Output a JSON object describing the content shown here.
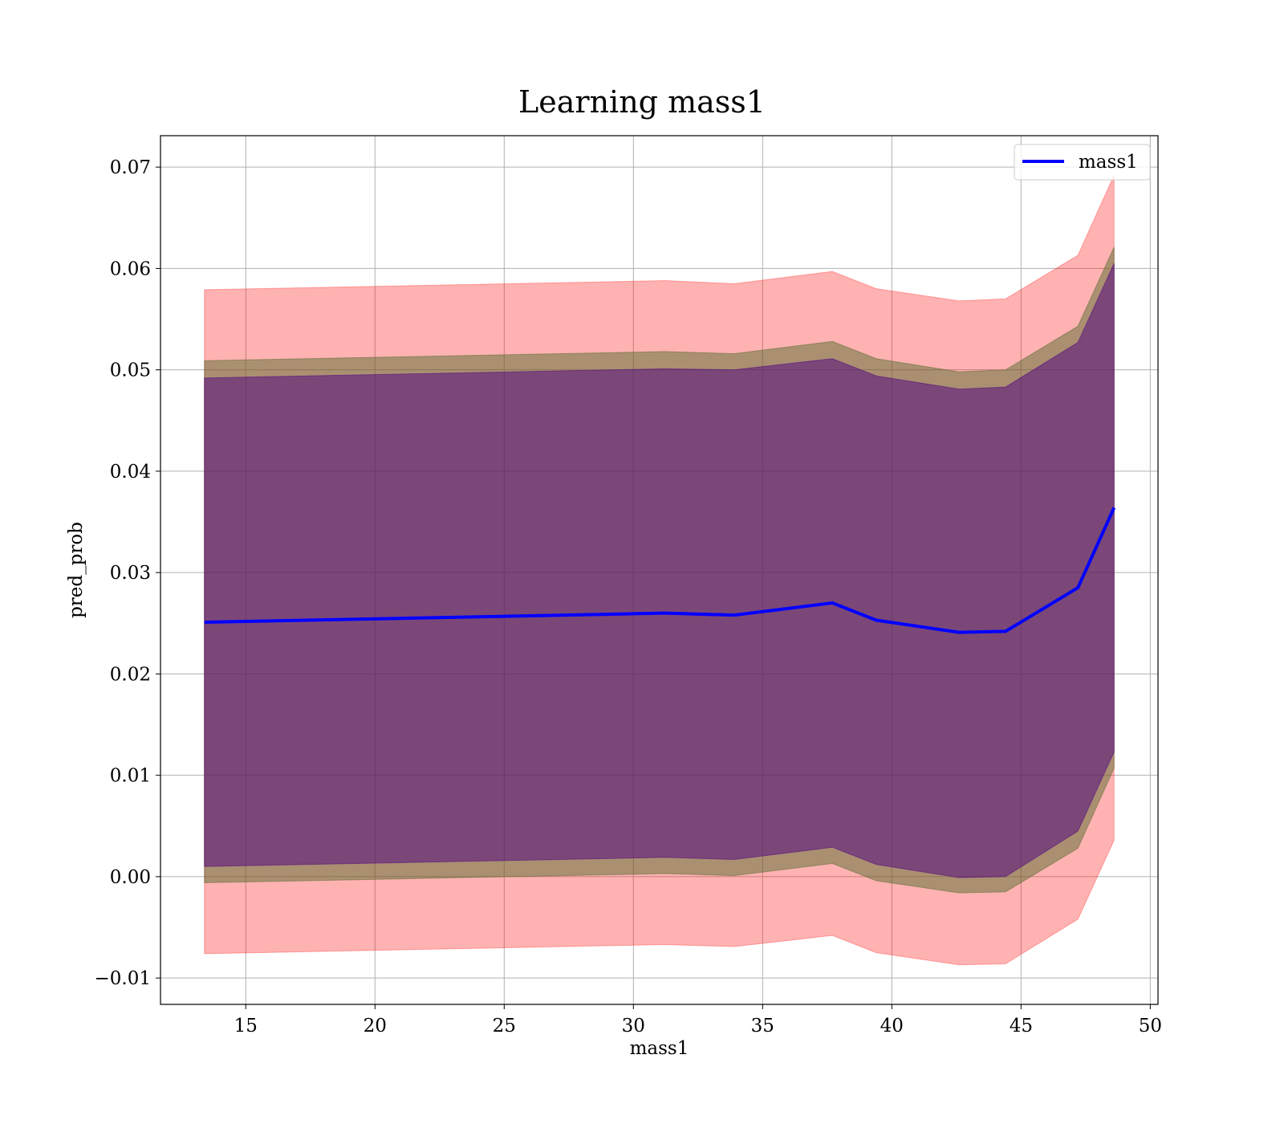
{
  "chart_data": {
    "type": "area",
    "title": "Learning mass1",
    "xlabel": "mass1",
    "ylabel": "pred_prob",
    "xlim": [
      11.7,
      50.3
    ],
    "ylim": [
      -0.0126,
      0.0731
    ],
    "xticks": [
      15,
      20,
      25,
      30,
      35,
      40,
      45,
      50
    ],
    "xtick_labels": [
      "15",
      "20",
      "25",
      "30",
      "35",
      "40",
      "45",
      "50"
    ],
    "yticks": [
      -0.01,
      0.0,
      0.01,
      0.02,
      0.03,
      0.04,
      0.05,
      0.06,
      0.07
    ],
    "ytick_labels": [
      "−0.01",
      "0.00",
      "0.01",
      "0.02",
      "0.03",
      "0.04",
      "0.05",
      "0.06",
      "0.07"
    ],
    "grid": true,
    "legend_position": "top-right",
    "x": [
      13.4,
      31.2,
      33.9,
      37.7,
      39.4,
      42.6,
      44.4,
      47.2,
      48.6
    ],
    "series": [
      {
        "name": "mass1",
        "type": "line",
        "color": "#0000ff",
        "values": [
          0.0251,
          0.026,
          0.0258,
          0.027,
          0.0253,
          0.0241,
          0.0242,
          0.0285,
          0.0364
        ]
      }
    ],
    "bands": [
      {
        "color": "#ff0000",
        "opacity": 0.3,
        "upper": [
          0.0579,
          0.0588,
          0.0585,
          0.0597,
          0.058,
          0.0568,
          0.057,
          0.0613,
          0.0692
        ],
        "lower": [
          -0.0076,
          -0.0067,
          -0.0069,
          -0.0058,
          -0.0075,
          -0.0087,
          -0.0086,
          -0.0042,
          0.0036
        ]
      },
      {
        "color": "#556b2f",
        "opacity": 0.5,
        "upper": [
          0.0509,
          0.0518,
          0.0516,
          0.0528,
          0.0511,
          0.0498,
          0.05,
          0.0543,
          0.0621
        ],
        "lower": [
          -0.0006,
          0.0003,
          0.0001,
          0.0013,
          -0.0004,
          -0.0016,
          -0.0015,
          0.0028,
          0.0107
        ]
      },
      {
        "color": "#4b0082",
        "opacity": 0.5,
        "upper": [
          0.0492,
          0.0501,
          0.05,
          0.0511,
          0.0494,
          0.0481,
          0.0483,
          0.0527,
          0.0605
        ],
        "lower": [
          0.001,
          0.0019,
          0.0017,
          0.0029,
          0.0012,
          -0.0001,
          0.0,
          0.0045,
          0.0123
        ]
      }
    ]
  }
}
